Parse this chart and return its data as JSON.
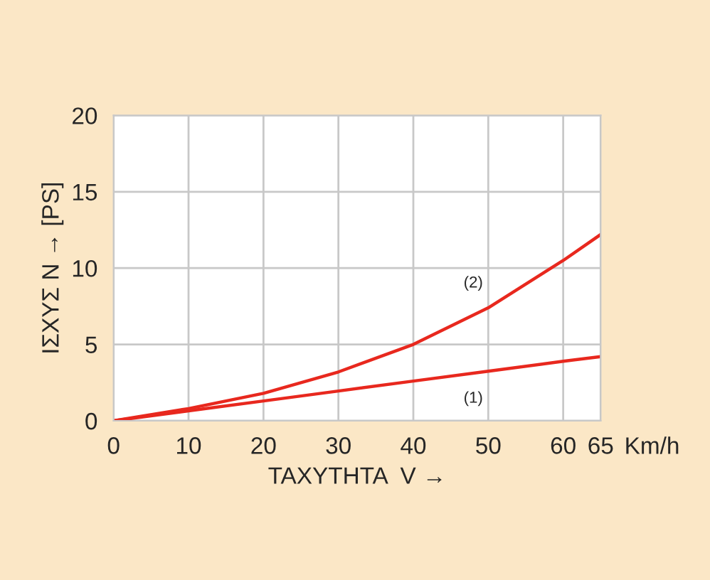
{
  "chart_data": {
    "type": "line",
    "xlabel": "ΤΑΧΥΤΗΤΑ  V →",
    "ylabel": "ΙΣΧΥΣ N → [PS]",
    "annotations": [
      "Km/h"
    ],
    "x": [
      0,
      10,
      20,
      30,
      40,
      50,
      60,
      65
    ],
    "series": [
      {
        "name": "(1)",
        "color": "#e8281e",
        "values": [
          0,
          0.65,
          1.3,
          1.95,
          2.6,
          3.25,
          3.9,
          4.2
        ]
      },
      {
        "name": "(2)",
        "color": "#e8281e",
        "values": [
          0,
          0.8,
          1.8,
          3.2,
          5.0,
          7.4,
          10.5,
          12.2
        ]
      }
    ],
    "xlim": [
      0,
      65
    ],
    "xticks": [
      0,
      10,
      20,
      30,
      40,
      50,
      60,
      65
    ],
    "ylim": [
      0,
      20
    ],
    "yticks": [
      0,
      5,
      10,
      15,
      20
    ],
    "grid": true,
    "legend": false,
    "marker": "none",
    "line_style": "solid"
  }
}
